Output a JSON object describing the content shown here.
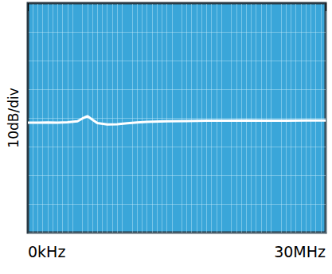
{
  "chart_data": {
    "type": "line",
    "y_label": "10dB/div",
    "x": [
      0,
      1,
      2,
      3,
      4,
      5,
      5.5,
      6,
      6.5,
      7,
      8,
      9,
      10,
      11,
      12,
      14,
      16,
      18,
      20,
      22,
      24,
      26,
      28,
      30
    ],
    "values": [
      -41.7,
      -41.7,
      -41.6,
      -41.7,
      -41.5,
      -41.2,
      -40.2,
      -39.4,
      -40.6,
      -41.8,
      -42.3,
      -42.2,
      -41.9,
      -41.6,
      -41.4,
      -41.2,
      -41.1,
      -41.0,
      -41.0,
      -40.9,
      -41.0,
      -41.0,
      -40.9,
      -40.9
    ],
    "color": "#ffffff",
    "xlim": [
      0,
      30
    ],
    "xticks": [
      {
        "value": 0,
        "label": "0kHz"
      },
      {
        "value": 30,
        "label": "30MHz"
      }
    ],
    "ylim": [
      -80,
      0
    ],
    "yticks": [
      -80,
      -70,
      -60,
      -50,
      -40,
      -30,
      -20,
      -10,
      0
    ],
    "grid": true,
    "tick_labels": "x"
  }
}
